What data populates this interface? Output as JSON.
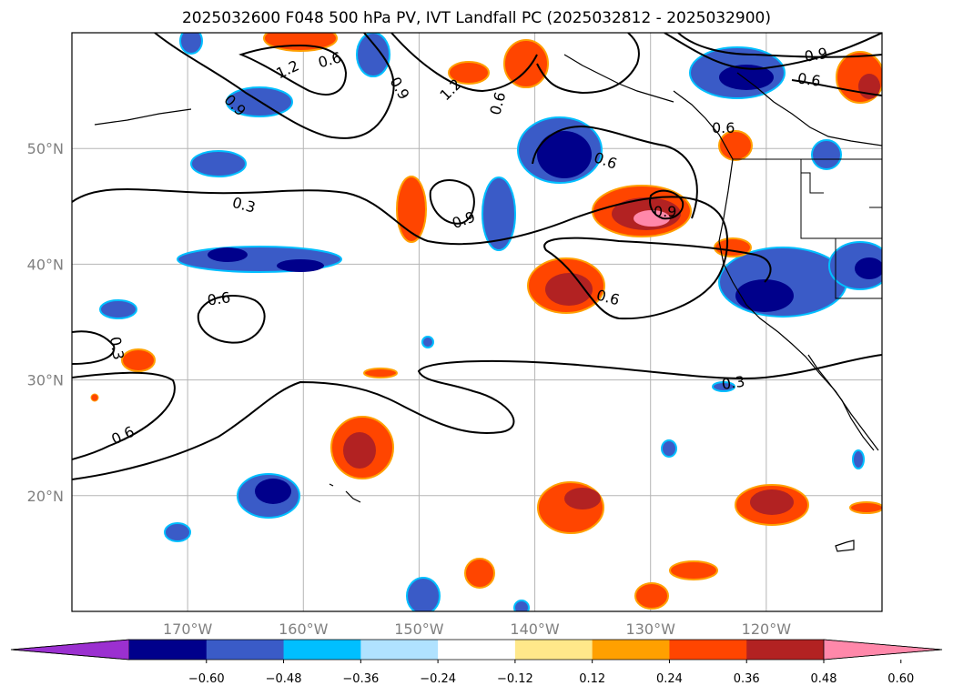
{
  "title": "2025032600 F048 500 hPa PV, IVT Landfall PC (2025032812 - 2025032900)",
  "map": {
    "lon_range": [
      -180,
      -110
    ],
    "lat_range": [
      10,
      60
    ],
    "lon_ticks": [
      {
        "value": -170,
        "label": "170°W"
      },
      {
        "value": -160,
        "label": "160°W"
      },
      {
        "value": -150,
        "label": "150°W"
      },
      {
        "value": -140,
        "label": "140°W"
      },
      {
        "value": -130,
        "label": "130°W"
      },
      {
        "value": -120,
        "label": "120°W"
      }
    ],
    "lat_ticks": [
      {
        "value": 20,
        "label": "20°N"
      },
      {
        "value": 30,
        "label": "30°N"
      },
      {
        "value": 40,
        "label": "40°N"
      },
      {
        "value": 50,
        "label": "50°N"
      }
    ],
    "gridlines": true
  },
  "contour_labels": [
    "1.2",
    "0.6",
    "0.9",
    "1.2",
    "0.6",
    "0.9",
    "0.6",
    "0.9",
    "0.6",
    "0.3",
    "0.9",
    "0.9",
    "0.6",
    "0.6",
    "0.3",
    "0.6",
    "0.3"
  ],
  "colorbar": {
    "ticks": [
      "−0.60",
      "−0.48",
      "−0.36",
      "−0.24",
      "−0.12",
      "0.12",
      "0.24",
      "0.36",
      "0.48",
      "0.60"
    ],
    "colors": [
      "#9b30d0",
      "#00008b",
      "#3a5bc7",
      "#00bfff",
      "#b0e2ff",
      "#ffffff",
      "#ffe88a",
      "#ffa000",
      "#ff4500",
      "#b22222",
      "#ff88aa"
    ],
    "extend": "both"
  }
}
